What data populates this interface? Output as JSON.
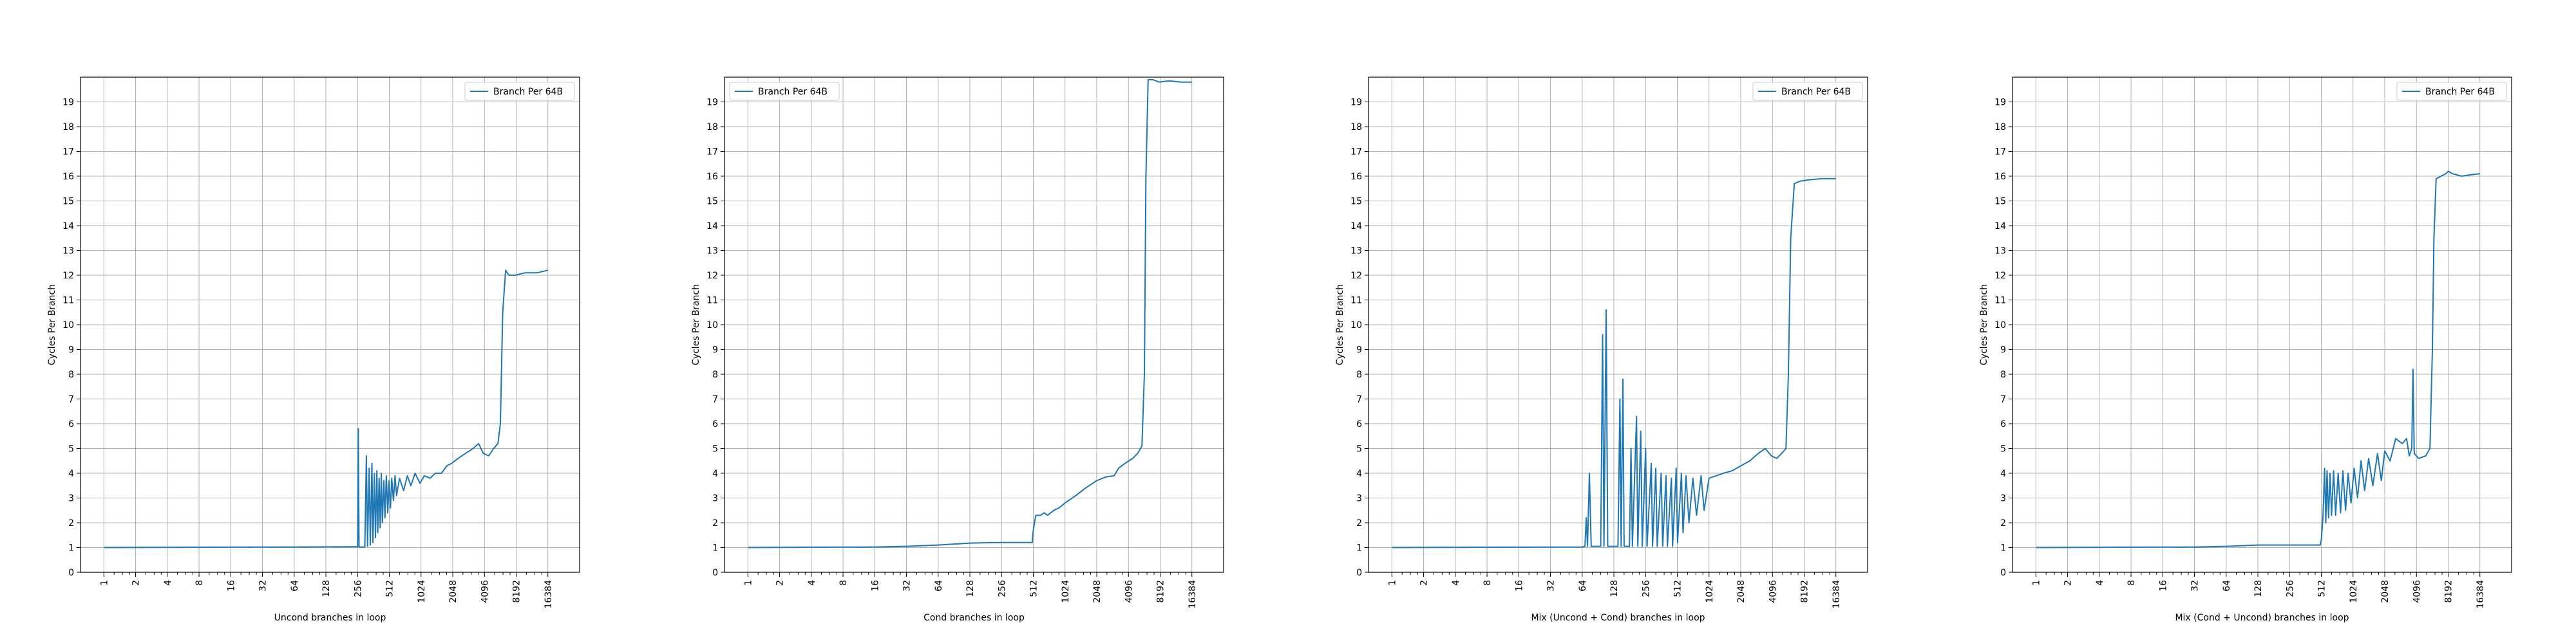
{
  "line_color": "#1f77b4",
  "chart_data": [
    {
      "type": "line",
      "xscale": "log2",
      "xlabel": "Uncond branches in loop",
      "ylabel": "Cycles Per Branch",
      "xticks": [
        1,
        2,
        4,
        8,
        16,
        32,
        64,
        128,
        256,
        512,
        1024,
        2048,
        4096,
        8192,
        16384
      ],
      "yticks": [
        0,
        1,
        2,
        3,
        4,
        5,
        6,
        7,
        8,
        9,
        10,
        11,
        12,
        13,
        14,
        15,
        16,
        17,
        18,
        19
      ],
      "xlim": [
        0.6,
        32768
      ],
      "ylim": [
        0,
        20
      ],
      "grid": true,
      "legend_position": "top-right",
      "series": [
        {
          "name": "Branch Per 64B",
          "points": [
            [
              1,
              1.0
            ],
            [
              64,
              1.02
            ],
            [
              250,
              1.03
            ],
            [
              256,
              1.04
            ],
            [
              260,
              5.8
            ],
            [
              264,
              1.02
            ],
            [
              300,
              1.02
            ],
            [
              310,
              4.7
            ],
            [
              318,
              1.05
            ],
            [
              330,
              4.2
            ],
            [
              338,
              1.1
            ],
            [
              350,
              4.4
            ],
            [
              358,
              1.2
            ],
            [
              370,
              4.0
            ],
            [
              378,
              1.4
            ],
            [
              390,
              4.1
            ],
            [
              398,
              1.6
            ],
            [
              410,
              3.8
            ],
            [
              420,
              1.8
            ],
            [
              430,
              4.0
            ],
            [
              440,
              2.0
            ],
            [
              455,
              3.7
            ],
            [
              465,
              2.2
            ],
            [
              480,
              3.9
            ],
            [
              495,
              2.4
            ],
            [
              510,
              3.7
            ],
            [
              525,
              2.6
            ],
            [
              540,
              3.8
            ],
            [
              560,
              2.9
            ],
            [
              580,
              3.9
            ],
            [
              600,
              3.1
            ],
            [
              640,
              3.8
            ],
            [
              700,
              3.3
            ],
            [
              760,
              3.9
            ],
            [
              820,
              3.5
            ],
            [
              900,
              4.0
            ],
            [
              1000,
              3.6
            ],
            [
              1100,
              3.9
            ],
            [
              1250,
              3.8
            ],
            [
              1400,
              4.0
            ],
            [
              1600,
              4.0
            ],
            [
              1800,
              4.3
            ],
            [
              2000,
              4.4
            ],
            [
              2300,
              4.6
            ],
            [
              2700,
              4.8
            ],
            [
              3200,
              5.0
            ],
            [
              3600,
              5.2
            ],
            [
              4000,
              4.8
            ],
            [
              4500,
              4.7
            ],
            [
              5000,
              5.0
            ],
            [
              5500,
              5.2
            ],
            [
              5800,
              6.0
            ],
            [
              6100,
              10.5
            ],
            [
              6500,
              12.2
            ],
            [
              7000,
              12.0
            ],
            [
              8000,
              12.0
            ],
            [
              10000,
              12.1
            ],
            [
              13000,
              12.1
            ],
            [
              16384,
              12.2
            ]
          ]
        }
      ]
    },
    {
      "type": "line",
      "xscale": "log2",
      "xlabel": "Cond branches in loop",
      "ylabel": "Cycles Per Branch",
      "xticks": [
        1,
        2,
        4,
        8,
        16,
        32,
        64,
        128,
        256,
        512,
        1024,
        2048,
        4096,
        8192,
        16384
      ],
      "yticks": [
        0,
        1,
        2,
        3,
        4,
        5,
        6,
        7,
        8,
        9,
        10,
        11,
        12,
        13,
        14,
        15,
        16,
        17,
        18,
        19
      ],
      "xlim": [
        0.6,
        32768
      ],
      "ylim": [
        0,
        20
      ],
      "grid": true,
      "legend_position": "top-left",
      "series": [
        {
          "name": "Branch Per 64B",
          "points": [
            [
              1,
              1.0
            ],
            [
              16,
              1.02
            ],
            [
              32,
              1.05
            ],
            [
              64,
              1.1
            ],
            [
              100,
              1.15
            ],
            [
              128,
              1.18
            ],
            [
              256,
              1.2
            ],
            [
              500,
              1.2
            ],
            [
              512,
              1.7
            ],
            [
              540,
              2.3
            ],
            [
              600,
              2.3
            ],
            [
              650,
              2.4
            ],
            [
              700,
              2.3
            ],
            [
              800,
              2.5
            ],
            [
              900,
              2.6
            ],
            [
              1024,
              2.8
            ],
            [
              1300,
              3.1
            ],
            [
              1600,
              3.4
            ],
            [
              2048,
              3.7
            ],
            [
              2500,
              3.85
            ],
            [
              3000,
              3.9
            ],
            [
              3300,
              4.2
            ],
            [
              3800,
              4.4
            ],
            [
              4500,
              4.6
            ],
            [
              5000,
              4.8
            ],
            [
              5500,
              5.1
            ],
            [
              5800,
              8.0
            ],
            [
              6000,
              16.0
            ],
            [
              6300,
              19.9
            ],
            [
              7000,
              19.9
            ],
            [
              8000,
              19.8
            ],
            [
              10000,
              19.85
            ],
            [
              13000,
              19.8
            ],
            [
              16384,
              19.8
            ]
          ]
        }
      ]
    },
    {
      "type": "line",
      "xscale": "log2",
      "xlabel": "Mix (Uncond + Cond) branches in loop",
      "ylabel": "Cycles Per Branch",
      "xticks": [
        1,
        2,
        4,
        8,
        16,
        32,
        64,
        128,
        256,
        512,
        1024,
        2048,
        4096,
        8192,
        16384
      ],
      "yticks": [
        0,
        1,
        2,
        3,
        4,
        5,
        6,
        7,
        8,
        9,
        10,
        11,
        12,
        13,
        14,
        15,
        16,
        17,
        18,
        19
      ],
      "xlim": [
        0.6,
        32768
      ],
      "ylim": [
        0,
        20
      ],
      "grid": true,
      "legend_position": "top-right",
      "series": [
        {
          "name": "Branch Per 64B",
          "points": [
            [
              1,
              1.0
            ],
            [
              64,
              1.02
            ],
            [
              68,
              1.05
            ],
            [
              70,
              2.2
            ],
            [
              72,
              1.05
            ],
            [
              75,
              4.0
            ],
            [
              78,
              1.05
            ],
            [
              96,
              1.05
            ],
            [
              100,
              9.6
            ],
            [
              103,
              1.05
            ],
            [
              108,
              10.6
            ],
            [
              112,
              1.05
            ],
            [
              140,
              1.05
            ],
            [
              146,
              7.0
            ],
            [
              150,
              1.05
            ],
            [
              156,
              7.8
            ],
            [
              160,
              1.05
            ],
            [
              180,
              1.05
            ],
            [
              186,
              5.0
            ],
            [
              192,
              1.05
            ],
            [
              210,
              6.3
            ],
            [
              216,
              1.05
            ],
            [
              230,
              5.7
            ],
            [
              238,
              1.05
            ],
            [
              256,
              5.0
            ],
            [
              264,
              1.05
            ],
            [
              290,
              4.4
            ],
            [
              298,
              1.05
            ],
            [
              320,
              4.2
            ],
            [
              330,
              1.05
            ],
            [
              360,
              4.0
            ],
            [
              372,
              1.05
            ],
            [
              400,
              3.9
            ],
            [
              412,
              1.05
            ],
            [
              450,
              3.8
            ],
            [
              462,
              1.05
            ],
            [
              500,
              4.2
            ],
            [
              515,
              1.2
            ],
            [
              560,
              4.0
            ],
            [
              580,
              1.6
            ],
            [
              620,
              3.9
            ],
            [
              660,
              2.0
            ],
            [
              720,
              3.8
            ],
            [
              780,
              2.3
            ],
            [
              860,
              3.9
            ],
            [
              920,
              2.5
            ],
            [
              1024,
              3.8
            ],
            [
              1200,
              3.9
            ],
            [
              1400,
              4.0
            ],
            [
              1700,
              4.1
            ],
            [
              2048,
              4.3
            ],
            [
              2500,
              4.5
            ],
            [
              3000,
              4.8
            ],
            [
              3500,
              5.0
            ],
            [
              4000,
              4.7
            ],
            [
              4500,
              4.6
            ],
            [
              5000,
              4.8
            ],
            [
              5500,
              5.0
            ],
            [
              5800,
              8.0
            ],
            [
              6100,
              13.5
            ],
            [
              6600,
              15.7
            ],
            [
              7500,
              15.8
            ],
            [
              9000,
              15.85
            ],
            [
              12000,
              15.9
            ],
            [
              16384,
              15.9
            ]
          ]
        }
      ]
    },
    {
      "type": "line",
      "xscale": "log2",
      "xlabel": "Mix (Cond + Uncond) branches in loop",
      "ylabel": "Cycles Per Branch",
      "xticks": [
        1,
        2,
        4,
        8,
        16,
        32,
        64,
        128,
        256,
        512,
        1024,
        2048,
        4096,
        8192,
        16384
      ],
      "yticks": [
        0,
        1,
        2,
        3,
        4,
        5,
        6,
        7,
        8,
        9,
        10,
        11,
        12,
        13,
        14,
        15,
        16,
        17,
        18,
        19
      ],
      "xlim": [
        0.6,
        32768
      ],
      "ylim": [
        0,
        20
      ],
      "grid": true,
      "legend_position": "top-right",
      "series": [
        {
          "name": "Branch Per 64B",
          "points": [
            [
              1,
              1.0
            ],
            [
              32,
              1.02
            ],
            [
              64,
              1.05
            ],
            [
              100,
              1.08
            ],
            [
              128,
              1.1
            ],
            [
              256,
              1.1
            ],
            [
              500,
              1.1
            ],
            [
              512,
              1.3
            ],
            [
              530,
              2.2
            ],
            [
              550,
              4.2
            ],
            [
              565,
              2.0
            ],
            [
              580,
              4.1
            ],
            [
              600,
              2.2
            ],
            [
              620,
              4.0
            ],
            [
              640,
              2.3
            ],
            [
              670,
              4.1
            ],
            [
              700,
              2.3
            ],
            [
              740,
              4.0
            ],
            [
              780,
              2.4
            ],
            [
              820,
              4.1
            ],
            [
              870,
              2.5
            ],
            [
              920,
              4.0
            ],
            [
              980,
              2.8
            ],
            [
              1050,
              4.2
            ],
            [
              1130,
              3.0
            ],
            [
              1220,
              4.5
            ],
            [
              1320,
              3.3
            ],
            [
              1440,
              4.6
            ],
            [
              1580,
              3.5
            ],
            [
              1750,
              4.8
            ],
            [
              1900,
              3.7
            ],
            [
              2048,
              4.9
            ],
            [
              2300,
              4.5
            ],
            [
              2600,
              5.4
            ],
            [
              3000,
              5.2
            ],
            [
              3300,
              5.4
            ],
            [
              3500,
              4.7
            ],
            [
              3700,
              5.0
            ],
            [
              3800,
              8.2
            ],
            [
              3900,
              4.8
            ],
            [
              4300,
              4.6
            ],
            [
              5000,
              4.7
            ],
            [
              5500,
              5.0
            ],
            [
              5800,
              9.0
            ],
            [
              6000,
              13.5
            ],
            [
              6300,
              15.9
            ],
            [
              7000,
              16.0
            ],
            [
              7800,
              16.1
            ],
            [
              8200,
              16.2
            ],
            [
              9000,
              16.1
            ],
            [
              11000,
              16.0
            ],
            [
              13000,
              16.05
            ],
            [
              16384,
              16.1
            ]
          ]
        }
      ]
    }
  ]
}
